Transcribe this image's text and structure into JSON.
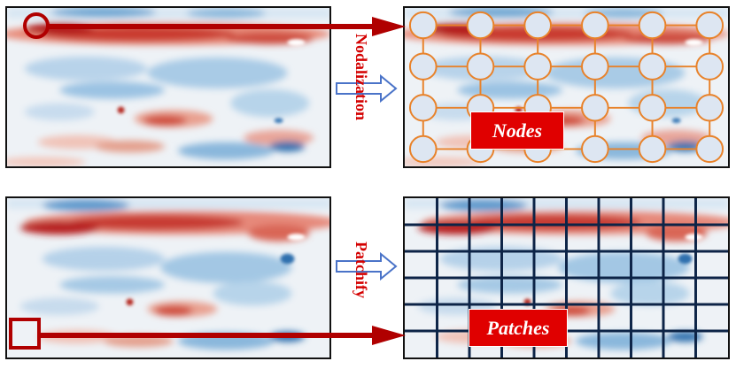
{
  "labels": {
    "nodalization": "Nodalization",
    "patchify": "Patchify",
    "nodes": "Nodes",
    "patches": "Patches"
  },
  "colors": {
    "arrow_red": "#b00000",
    "node_fill": "#dde6f2",
    "node_stroke": "#e8822a",
    "grid_line": "#0d2447",
    "label_red": "#d40000",
    "hollow_arrow": "#4a73c8"
  },
  "nodes": {
    "rows": 4,
    "cols": 6
  },
  "patches": {
    "rows": 6,
    "cols": 10
  }
}
